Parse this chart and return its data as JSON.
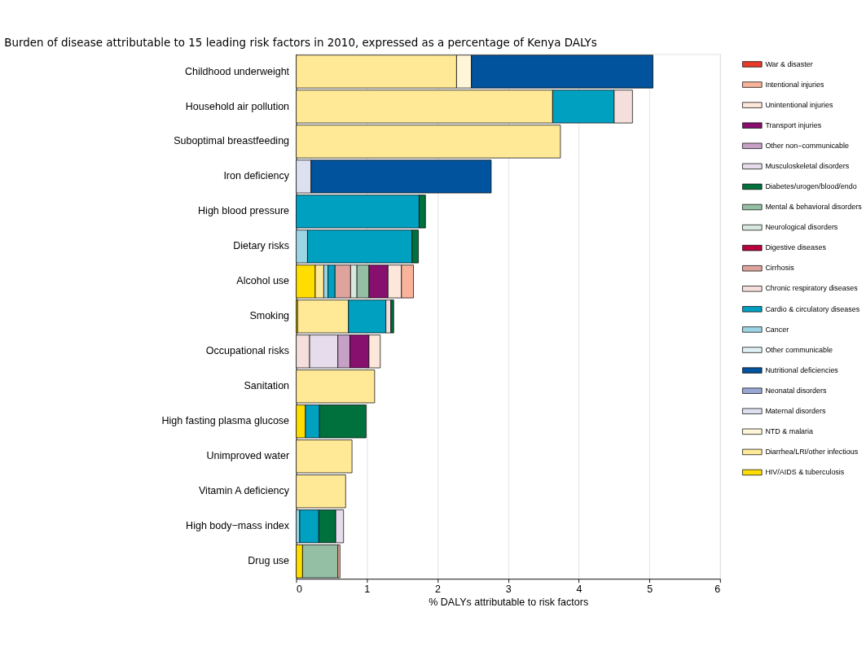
{
  "chart_data": {
    "type": "bar",
    "orientation": "horizontal",
    "stacked": true,
    "title": "Burden of disease attributable to 15 leading risk factors in 2010, expressed as a percentage of Kenya DALYs",
    "xlabel": "% DALYs attributable to risk factors",
    "categories": [
      "Childhood underweight",
      "Household air pollution",
      "Suboptimal breastfeeding",
      "Iron deficiency",
      "High blood pressure",
      "Dietary risks",
      "Alcohol use",
      "Smoking",
      "Occupational risks",
      "Sanitation",
      "High fasting plasma glucose",
      "Unimproved water",
      "Vitamin A deficiency",
      "High body−mass index",
      "Drug use"
    ],
    "xlim": [
      0,
      6
    ],
    "xticks": [
      0,
      1,
      2,
      3,
      4,
      5,
      6
    ],
    "grid": "x",
    "legend": "right",
    "series": [
      {
        "name": "HIV/AIDS & tuberculosis",
        "color": "#ffdd00",
        "values": [
          null,
          null,
          null,
          null,
          null,
          null,
          0.27,
          0.02,
          null,
          null,
          0.13,
          null,
          null,
          null,
          0.09
        ]
      },
      {
        "name": "Diarrhea/LRI/other infectious",
        "color": "#ffe996",
        "values": [
          2.27,
          3.63,
          3.74,
          null,
          null,
          null,
          0.12,
          0.72,
          null,
          1.11,
          null,
          0.79,
          0.7,
          null,
          null
        ]
      },
      {
        "name": "NTD & malaria",
        "color": "#fff6d9",
        "values": [
          0.21,
          null,
          null,
          null,
          null,
          null,
          null,
          null,
          null,
          null,
          null,
          null,
          null,
          null,
          null
        ]
      },
      {
        "name": "Maternal disorders",
        "color": "#dde0ee",
        "values": [
          null,
          null,
          null,
          0.21,
          null,
          null,
          null,
          null,
          null,
          null,
          null,
          null,
          null,
          null,
          null
        ]
      },
      {
        "name": "Neonatal disorders",
        "color": "#98a7d4",
        "values": [
          null,
          null,
          null,
          null,
          null,
          null,
          null,
          null,
          null,
          null,
          null,
          null,
          null,
          null,
          null
        ]
      },
      {
        "name": "Nutritional deficiencies",
        "color": "#00539c",
        "values": [
          2.57,
          null,
          null,
          2.55,
          null,
          null,
          null,
          null,
          null,
          null,
          null,
          null,
          null,
          null,
          null
        ]
      },
      {
        "name": "Other communicable",
        "color": "#dff1f5",
        "values": [
          null,
          null,
          null,
          null,
          null,
          null,
          null,
          null,
          null,
          null,
          null,
          null,
          null,
          null,
          null
        ]
      },
      {
        "name": "Cancer",
        "color": "#9dd5e4",
        "values": [
          null,
          null,
          null,
          null,
          null,
          0.16,
          0.06,
          null,
          null,
          null,
          null,
          null,
          null,
          0.05,
          null
        ]
      },
      {
        "name": "Cardio & circulatory diseases",
        "color": "#00a0c0",
        "values": [
          null,
          0.87,
          null,
          null,
          1.74,
          1.48,
          0.1,
          0.53,
          null,
          null,
          0.2,
          null,
          null,
          0.27,
          null
        ]
      },
      {
        "name": "Chronic respiratory diseases",
        "color": "#f5dfdc",
        "values": [
          null,
          0.26,
          null,
          null,
          null,
          null,
          null,
          0.07,
          0.19,
          null,
          null,
          null,
          null,
          null,
          null
        ]
      },
      {
        "name": "Cirrhosis",
        "color": "#dfa39d",
        "values": [
          null,
          null,
          null,
          null,
          null,
          null,
          0.22,
          null,
          null,
          null,
          null,
          null,
          null,
          null,
          null
        ]
      },
      {
        "name": "Digestive diseases",
        "color": "#b5003b",
        "values": [
          null,
          null,
          null,
          null,
          null,
          null,
          null,
          null,
          null,
          null,
          null,
          null,
          null,
          null,
          null
        ]
      },
      {
        "name": "Neurological disorders",
        "color": "#d7e8df",
        "values": [
          null,
          null,
          null,
          null,
          null,
          null,
          0.09,
          null,
          null,
          null,
          null,
          null,
          null,
          null,
          null
        ]
      },
      {
        "name": "Mental & behavioral disorders",
        "color": "#94bfa4",
        "values": [
          null,
          null,
          null,
          null,
          null,
          null,
          0.17,
          null,
          null,
          null,
          null,
          null,
          null,
          null,
          0.5
        ]
      },
      {
        "name": "Diabetes/urogen/blood/endo",
        "color": "#00703c",
        "values": [
          null,
          null,
          null,
          null,
          0.09,
          0.09,
          null,
          0.04,
          null,
          null,
          0.66,
          null,
          null,
          0.24,
          null
        ]
      },
      {
        "name": "Musculoskeletal disorders",
        "color": "#e6dcec",
        "values": [
          null,
          null,
          null,
          null,
          null,
          null,
          null,
          null,
          0.4,
          null,
          null,
          null,
          null,
          0.11,
          null
        ]
      },
      {
        "name": "Other non−communicable",
        "color": "#c7a0c6",
        "values": [
          null,
          null,
          null,
          null,
          null,
          null,
          null,
          null,
          0.17,
          null,
          null,
          null,
          null,
          null,
          null
        ]
      },
      {
        "name": "Transport injuries",
        "color": "#87106e",
        "values": [
          null,
          null,
          null,
          null,
          null,
          null,
          0.27,
          null,
          0.27,
          null,
          null,
          null,
          null,
          null,
          null
        ]
      },
      {
        "name": "Unintentional injuries",
        "color": "#fde6da",
        "values": [
          null,
          null,
          null,
          null,
          null,
          null,
          0.19,
          null,
          0.16,
          null,
          null,
          null,
          null,
          null,
          null
        ]
      },
      {
        "name": "Intentional injuries",
        "color": "#f9b39a",
        "values": [
          null,
          null,
          null,
          null,
          null,
          null,
          0.17,
          null,
          null,
          null,
          null,
          null,
          null,
          null,
          0.03
        ]
      },
      {
        "name": "War & disaster",
        "color": "#e8392b",
        "values": [
          null,
          null,
          null,
          null,
          null,
          null,
          null,
          null,
          null,
          null,
          null,
          null,
          null,
          null,
          null
        ]
      }
    ]
  }
}
